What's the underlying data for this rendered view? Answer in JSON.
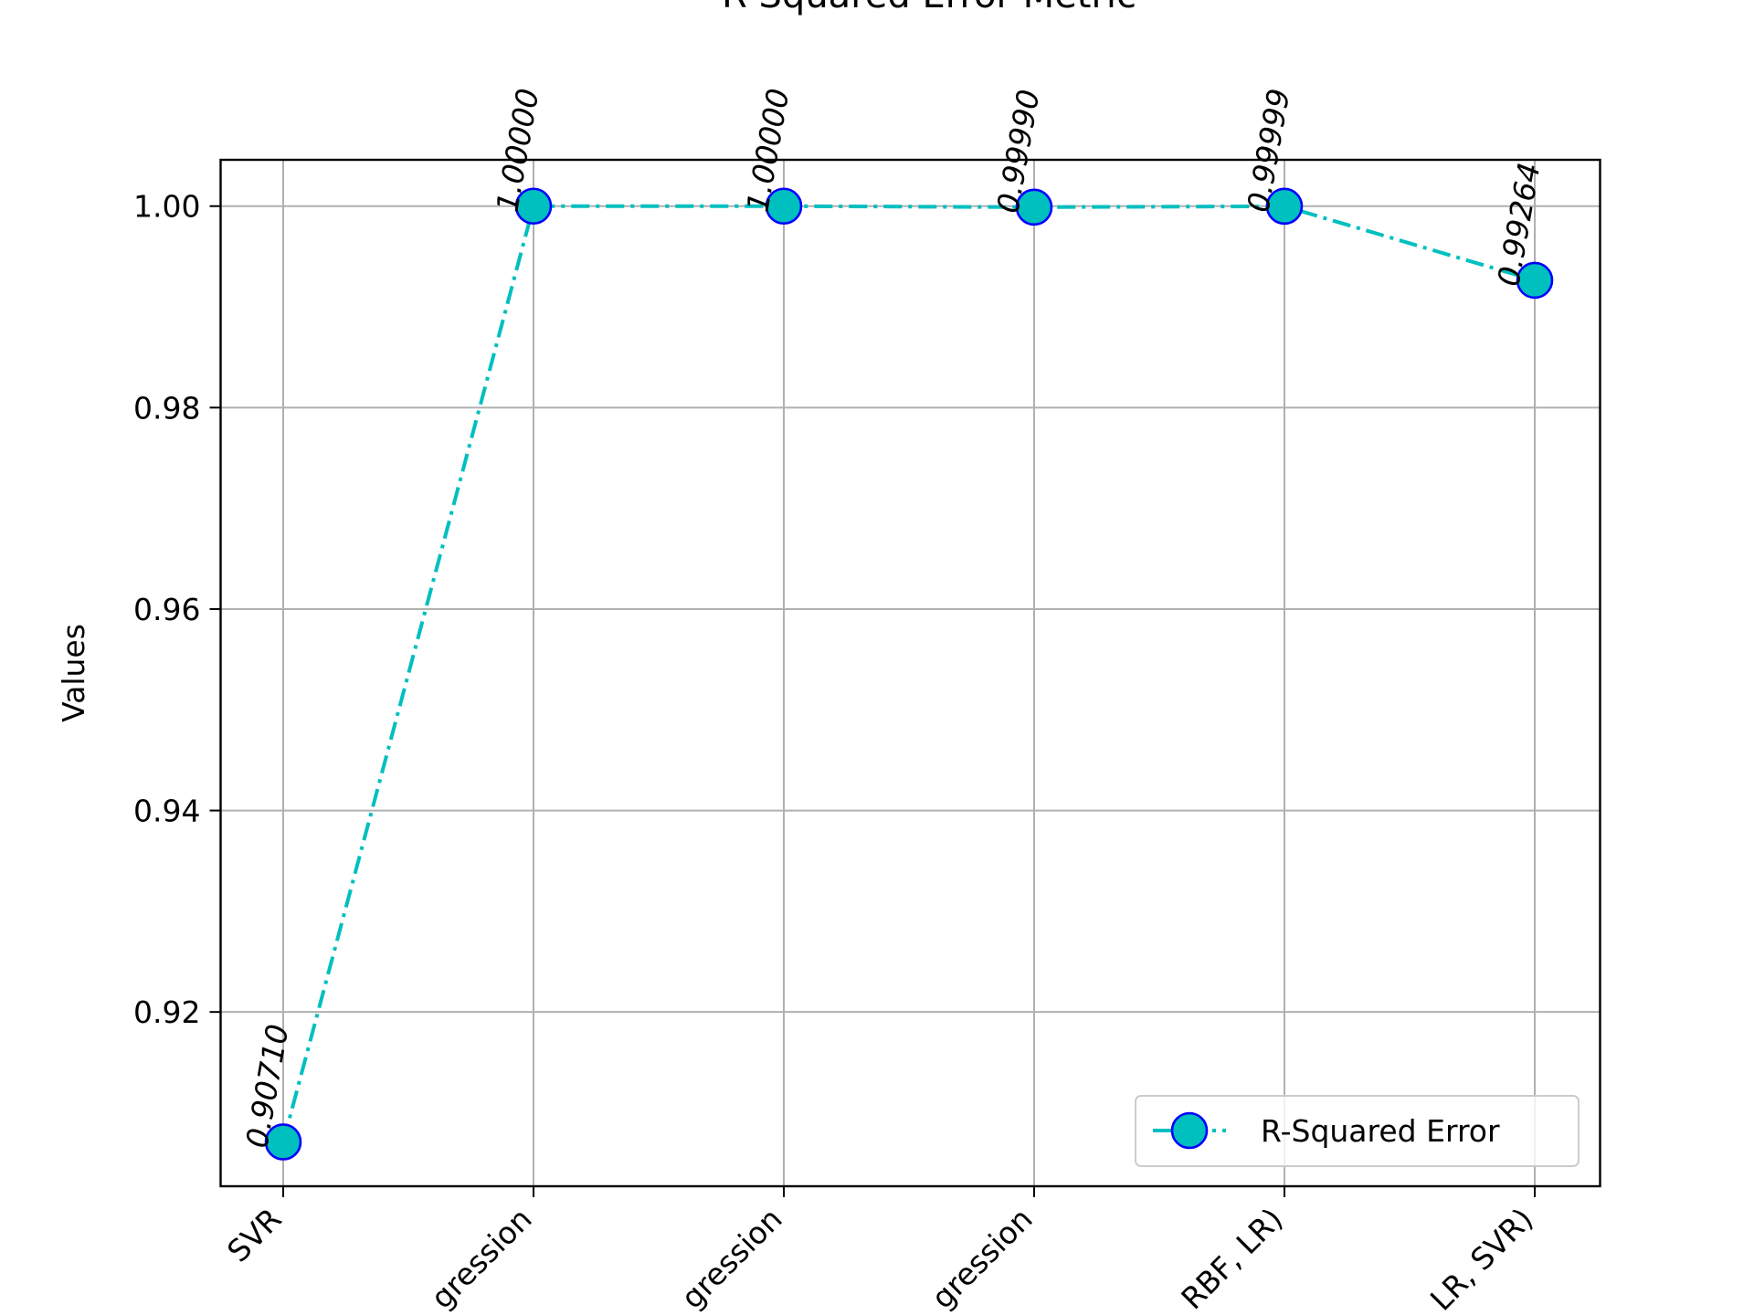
{
  "chart_data": {
    "type": "line",
    "title": "R-Squared Error Metric",
    "xlabel": "",
    "ylabel": "Values",
    "categories": [
      "SVR",
      "gression",
      "gression",
      "gression",
      "RBF, LR)",
      "LR, SVR)"
    ],
    "series": [
      {
        "name": "R-Squared Error",
        "values": [
          0.9071,
          1.0,
          1.0,
          0.9999,
          0.99999,
          0.99264
        ],
        "value_labels": [
          "0.90710",
          "1.00000",
          "1.00000",
          "0.99990",
          "0.99999",
          "0.99264"
        ],
        "line_color": "#00bfbf",
        "marker_face_color": "#00bfbf",
        "marker_edge_color": "#0000ff",
        "line_style": "dash-dot",
        "marker": "circle"
      }
    ],
    "y_ticks": [
      "0.92",
      "0.94",
      "0.96",
      "0.98",
      "1.00"
    ],
    "y_tick_values": [
      0.92,
      0.94,
      0.96,
      0.98,
      1.0
    ],
    "ylim": [
      0.9027,
      1.0046
    ],
    "grid": true,
    "legend_position": "lower-right"
  }
}
